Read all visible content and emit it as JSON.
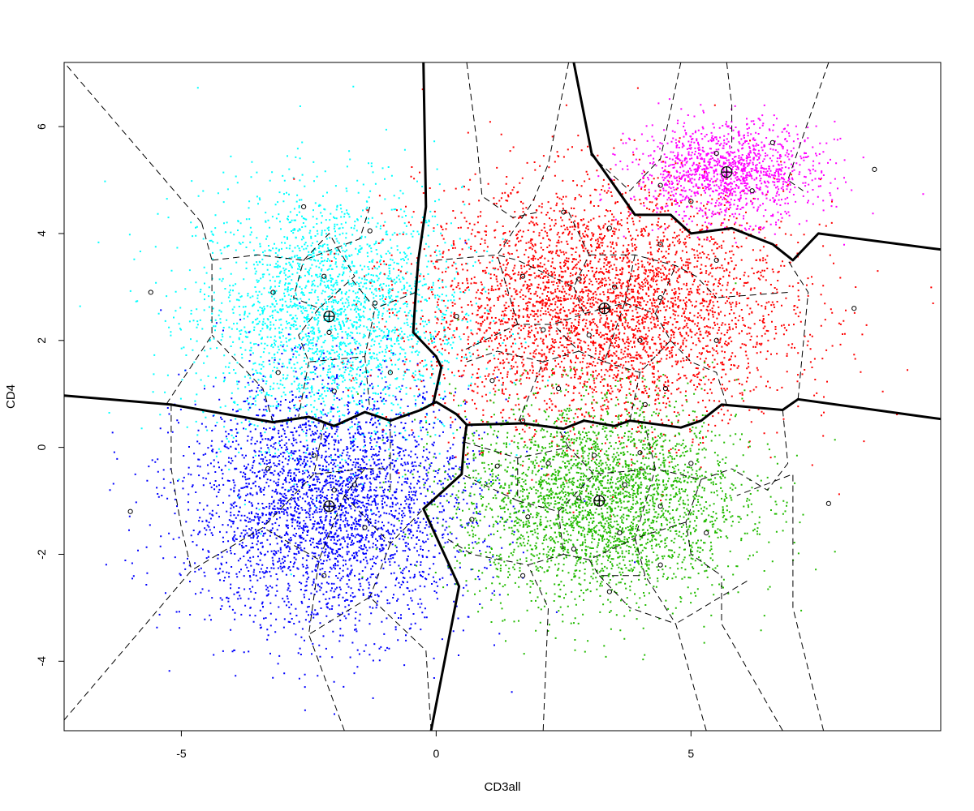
{
  "chart_data": {
    "type": "scatter",
    "xlabel": "CD3all",
    "ylabel": "CD4",
    "xlim": [
      -7.3,
      9.9
    ],
    "ylim": [
      -5.3,
      7.2
    ],
    "x_ticks": [
      {
        "value": -5,
        "label": "-5"
      },
      {
        "value": 0,
        "label": "0"
      },
      {
        "value": 5,
        "label": "5"
      }
    ],
    "y_ticks": [
      {
        "value": -4,
        "label": "-4"
      },
      {
        "value": -2,
        "label": "-2"
      },
      {
        "value": 0,
        "label": "0"
      },
      {
        "value": 2,
        "label": "2"
      },
      {
        "value": 4,
        "label": "4"
      },
      {
        "value": 6,
        "label": "6"
      }
    ],
    "grid": false,
    "clusters": [
      {
        "color": "#00ffff",
        "center": [
          -2.1,
          2.45
        ],
        "sd": [
          1.3,
          1.2
        ],
        "n": 2600,
        "subcenters": [
          [
            -3.2,
            2.9
          ],
          [
            -2.2,
            3.2
          ],
          [
            -1.3,
            4.05
          ],
          [
            -2.6,
            4.5
          ],
          [
            -1.2,
            2.7
          ],
          [
            -2.1,
            2.15
          ],
          [
            -3.1,
            1.4
          ],
          [
            -2.0,
            1.05
          ],
          [
            -0.9,
            1.4
          ],
          [
            -5.6,
            2.9
          ]
        ]
      },
      {
        "color": "#0000ff",
        "center": [
          -2.1,
          -1.1
        ],
        "sd": [
          1.4,
          1.15
        ],
        "n": 3400,
        "subcenters": [
          [
            -3.3,
            -0.4
          ],
          [
            -2.4,
            -0.15
          ],
          [
            -1.6,
            -0.7
          ],
          [
            -1.4,
            -1.5
          ],
          [
            -2.2,
            -2.4
          ],
          [
            -6.0,
            -1.2
          ],
          [
            -2.0,
            -0.8
          ]
        ]
      },
      {
        "color": "#ff0000",
        "center": [
          3.3,
          2.6
        ],
        "sd": [
          1.8,
          1.15
        ],
        "n": 4200,
        "subcenters": [
          [
            0.4,
            2.45
          ],
          [
            1.7,
            3.2
          ],
          [
            2.8,
            3.15
          ],
          [
            3.5,
            3.0
          ],
          [
            3.4,
            4.1
          ],
          [
            4.4,
            3.8
          ],
          [
            4.4,
            2.8
          ],
          [
            4.0,
            2.0
          ],
          [
            3.0,
            2.1
          ],
          [
            2.1,
            2.2
          ],
          [
            1.1,
            1.25
          ],
          [
            2.4,
            1.1
          ],
          [
            5.5,
            3.5
          ],
          [
            5.5,
            2.0
          ],
          [
            4.5,
            1.1
          ],
          [
            2.5,
            4.4
          ],
          [
            1.7,
            0.5
          ],
          [
            8.2,
            2.6
          ],
          [
            4.1,
            0.8
          ]
        ]
      },
      {
        "color": "#22bb00",
        "center": [
          3.2,
          -1.0
        ],
        "sd": [
          1.4,
          0.95
        ],
        "n": 3200,
        "subcenters": [
          [
            1.2,
            -0.35
          ],
          [
            2.2,
            -0.3
          ],
          [
            3.1,
            -0.15
          ],
          [
            4.0,
            -0.1
          ],
          [
            5.0,
            -0.3
          ],
          [
            2.8,
            -0.95
          ],
          [
            3.7,
            -0.7
          ],
          [
            4.4,
            -1.1
          ],
          [
            1.8,
            -1.3
          ],
          [
            0.7,
            -1.35
          ],
          [
            3.6,
            -1.6
          ],
          [
            5.3,
            -1.6
          ],
          [
            2.7,
            -1.9
          ],
          [
            4.4,
            -2.2
          ],
          [
            1.7,
            -2.4
          ],
          [
            3.4,
            -2.7
          ],
          [
            7.7,
            -1.05
          ]
        ]
      },
      {
        "color": "#ff00ff",
        "center": [
          5.7,
          5.15
        ],
        "sd": [
          0.9,
          0.45
        ],
        "n": 1300,
        "subcenters": [
          [
            5.5,
            5.5
          ],
          [
            4.4,
            4.9
          ],
          [
            5.0,
            4.6
          ],
          [
            6.2,
            4.8
          ],
          [
            6.6,
            5.7
          ],
          [
            8.6,
            5.2
          ]
        ]
      }
    ],
    "big_centers": [
      [
        -2.1,
        2.45
      ],
      [
        -2.1,
        -1.1
      ],
      [
        3.3,
        2.6
      ],
      [
        3.2,
        -1.0
      ],
      [
        5.7,
        5.15
      ]
    ],
    "bold_boundaries": [
      [
        [
          -7.3,
          0.97
        ],
        [
          -5.2,
          0.8
        ],
        [
          -3.2,
          0.47
        ],
        [
          -2.5,
          0.57
        ],
        [
          -2.0,
          0.4
        ],
        [
          -1.4,
          0.66
        ],
        [
          -0.9,
          0.5
        ],
        [
          -0.3,
          0.7
        ],
        [
          0.0,
          0.85
        ],
        [
          0.4,
          0.62
        ],
        [
          0.6,
          0.42
        ],
        [
          1.7,
          0.45
        ],
        [
          2.5,
          0.35
        ],
        [
          2.9,
          0.5
        ],
        [
          3.5,
          0.4
        ],
        [
          3.8,
          0.5
        ],
        [
          4.8,
          0.37
        ],
        [
          5.2,
          0.5
        ],
        [
          5.6,
          0.8
        ],
        [
          6.8,
          0.7
        ],
        [
          7.1,
          0.9
        ],
        [
          9.9,
          0.53
        ]
      ],
      [
        [
          0.6,
          0.42
        ],
        [
          0.55,
          0.1
        ],
        [
          0.5,
          -0.5
        ],
        [
          -0.25,
          -1.15
        ],
        [
          0.45,
          -2.6
        ],
        [
          -0.1,
          -5.3
        ]
      ],
      [
        [
          -0.05,
          0.85
        ],
        [
          0.1,
          1.5
        ],
        [
          0.0,
          1.7
        ],
        [
          -0.45,
          2.15
        ],
        [
          -0.4,
          2.9
        ],
        [
          -0.35,
          3.5
        ],
        [
          -0.2,
          4.5
        ],
        [
          -0.25,
          7.2
        ]
      ],
      [
        [
          2.7,
          7.2
        ],
        [
          3.05,
          5.5
        ],
        [
          3.9,
          4.35
        ],
        [
          4.6,
          4.35
        ],
        [
          5.0,
          4.0
        ],
        [
          5.8,
          4.1
        ],
        [
          6.6,
          3.8
        ],
        [
          7.0,
          3.5
        ],
        [
          7.5,
          4.0
        ],
        [
          9.9,
          3.7
        ]
      ]
    ],
    "dashed_boundaries": [
      [
        [
          -5.2,
          0.8
        ],
        [
          -5.2,
          -0.4
        ],
        [
          -5.0,
          -1.5
        ],
        [
          -4.8,
          -2.3
        ],
        [
          -7.3,
          -5.1
        ]
      ],
      [
        [
          -4.6,
          4.2
        ],
        [
          -7.3,
          7.2
        ]
      ],
      [
        [
          -4.6,
          4.2
        ],
        [
          -4.4,
          3.5
        ],
        [
          -4.4,
          2.1
        ],
        [
          -5.3,
          0.8
        ]
      ],
      [
        [
          -1.8,
          -5.3
        ],
        [
          -2.5,
          -3.5
        ],
        [
          -2.3,
          -2.1
        ],
        [
          -3.4,
          -1.5
        ],
        [
          -4.8,
          -2.3
        ]
      ],
      [
        [
          -0.1,
          -5.3
        ],
        [
          -0.2,
          -3.8
        ],
        [
          -1.3,
          -2.8
        ],
        [
          -2.5,
          -3.5
        ]
      ],
      [
        [
          2.1,
          -5.3
        ],
        [
          2.2,
          -3.0
        ],
        [
          1.8,
          -2.2
        ]
      ],
      [
        [
          5.3,
          -5.3
        ],
        [
          4.7,
          -3.3
        ],
        [
          3.8,
          -3.0
        ]
      ],
      [
        [
          6.8,
          -5.3
        ],
        [
          5.6,
          -3.3
        ],
        [
          5.6,
          -2.4
        ]
      ],
      [
        [
          7.6,
          -5.3
        ],
        [
          7.0,
          -3.0
        ],
        [
          7.0,
          -0.5
        ],
        [
          5.9,
          -0.9
        ]
      ],
      [
        [
          6.1,
          -2.5
        ],
        [
          4.7,
          -3.3
        ]
      ],
      [
        [
          6.8,
          0.7
        ],
        [
          6.9,
          -0.3
        ],
        [
          6.5,
          -0.8
        ],
        [
          5.8,
          -0.4
        ]
      ],
      [
        [
          7.1,
          0.9
        ],
        [
          7.3,
          2.9
        ],
        [
          6.9,
          3.5
        ]
      ],
      [
        [
          6.9,
          2.9
        ],
        [
          5.5,
          2.8
        ]
      ],
      [
        [
          4.8,
          7.2
        ],
        [
          4.4,
          5.4
        ],
        [
          3.8,
          4.8
        ],
        [
          3.0,
          5.5
        ]
      ],
      [
        [
          5.7,
          7.2
        ],
        [
          5.8,
          6.4
        ],
        [
          5.8,
          5.6
        ]
      ],
      [
        [
          7.7,
          7.2
        ],
        [
          6.9,
          5.0
        ],
        [
          7.2,
          4.8
        ]
      ],
      [
        [
          2.6,
          7.2
        ],
        [
          2.2,
          5.3
        ],
        [
          1.9,
          4.6
        ],
        [
          1.2,
          3.6
        ],
        [
          0.0,
          3.5
        ]
      ],
      [
        [
          0.6,
          7.2
        ],
        [
          0.8,
          5.7
        ],
        [
          0.9,
          4.7
        ],
        [
          1.5,
          4.3
        ],
        [
          2.0,
          4.4
        ]
      ],
      [
        [
          -3.2,
          0.47
        ],
        [
          -3.4,
          1.1
        ],
        [
          -4.4,
          2.1
        ]
      ],
      [
        [
          -0.4,
          2.9
        ],
        [
          -1.2,
          2.6
        ],
        [
          -1.7,
          3.2
        ]
      ],
      [
        [
          -2.6,
          3.5
        ],
        [
          -2.1,
          4.0
        ],
        [
          -1.6,
          3.2
        ],
        [
          -2.3,
          2.6
        ],
        [
          -2.8,
          2.8
        ],
        [
          -2.6,
          3.5
        ]
      ],
      [
        [
          -1.3,
          4.5
        ],
        [
          -1.5,
          3.9
        ],
        [
          -2.6,
          3.5
        ],
        [
          -3.5,
          3.6
        ],
        [
          -4.4,
          3.5
        ]
      ],
      [
        [
          -2.3,
          2.6
        ],
        [
          -2.7,
          2.1
        ],
        [
          -2.5,
          1.6
        ],
        [
          -1.4,
          1.7
        ],
        [
          -1.2,
          2.6
        ]
      ],
      [
        [
          -2.5,
          1.6
        ],
        [
          -2.7,
          0.57
        ]
      ],
      [
        [
          -1.4,
          1.7
        ],
        [
          -1.3,
          0.7
        ]
      ],
      [
        [
          -0.9,
          0.5
        ],
        [
          -0.9,
          -0.8
        ]
      ],
      [
        [
          -2.2,
          0.45
        ],
        [
          -2.4,
          -0.5
        ],
        [
          -1.4,
          -0.4
        ],
        [
          -1.0,
          -0.4
        ]
      ],
      [
        [
          -2.4,
          -0.5
        ],
        [
          -3.4,
          -1.5
        ]
      ],
      [
        [
          -1.4,
          -0.4
        ],
        [
          -1.8,
          -0.9
        ],
        [
          -2.3,
          -2.1
        ]
      ],
      [
        [
          -1.8,
          -0.9
        ],
        [
          -0.9,
          -1.8
        ],
        [
          -0.25,
          -1.15
        ]
      ],
      [
        [
          -0.9,
          -1.8
        ],
        [
          -1.3,
          -2.8
        ]
      ],
      [
        [
          2.6,
          4.4
        ],
        [
          3.0,
          3.6
        ],
        [
          2.7,
          3.0
        ],
        [
          1.6,
          3.5
        ],
        [
          1.2,
          3.6
        ]
      ],
      [
        [
          3.0,
          3.6
        ],
        [
          3.9,
          3.6
        ],
        [
          4.7,
          3.4
        ],
        [
          5.1,
          3.2
        ],
        [
          5.5,
          2.8
        ]
      ],
      [
        [
          2.7,
          3.0
        ],
        [
          2.9,
          2.5
        ],
        [
          2.3,
          2.3
        ],
        [
          1.6,
          2.3
        ],
        [
          0.5,
          1.8
        ]
      ],
      [
        [
          3.9,
          3.6
        ],
        [
          3.7,
          2.7
        ],
        [
          2.9,
          2.5
        ]
      ],
      [
        [
          3.7,
          2.7
        ],
        [
          4.3,
          2.5
        ],
        [
          4.7,
          3.4
        ]
      ],
      [
        [
          4.3,
          2.5
        ],
        [
          4.6,
          2.0
        ],
        [
          5.0,
          1.6
        ],
        [
          5.5,
          1.4
        ],
        [
          5.7,
          0.8
        ]
      ],
      [
        [
          3.7,
          2.7
        ],
        [
          3.3,
          1.6
        ],
        [
          2.8,
          1.8
        ],
        [
          2.3,
          2.3
        ]
      ],
      [
        [
          3.3,
          1.6
        ],
        [
          4.0,
          1.4
        ],
        [
          4.6,
          2.0
        ]
      ],
      [
        [
          4.0,
          1.4
        ],
        [
          3.8,
          0.5
        ]
      ],
      [
        [
          2.8,
          1.8
        ],
        [
          2.1,
          1.6
        ],
        [
          1.6,
          0.45
        ]
      ],
      [
        [
          2.1,
          1.6
        ],
        [
          1.2,
          1.8
        ],
        [
          0.6,
          1.6
        ]
      ],
      [
        [
          1.6,
          2.3
        ],
        [
          1.2,
          3.6
        ]
      ],
      [
        [
          0.55,
          0.1
        ],
        [
          1.6,
          -0.2
        ],
        [
          2.6,
          0.0
        ],
        [
          3.1,
          -0.5
        ],
        [
          4.3,
          -0.4
        ],
        [
          5.2,
          -0.6
        ],
        [
          5.8,
          -0.4
        ]
      ],
      [
        [
          1.6,
          -0.2
        ],
        [
          1.6,
          -1.0
        ],
        [
          0.5,
          -0.5
        ]
      ],
      [
        [
          1.6,
          -1.0
        ],
        [
          2.4,
          -1.2
        ],
        [
          3.1,
          -0.5
        ]
      ],
      [
        [
          2.4,
          -1.2
        ],
        [
          2.5,
          -2.0
        ],
        [
          3.0,
          -2.1
        ],
        [
          3.9,
          -1.7
        ],
        [
          4.3,
          -0.4
        ]
      ],
      [
        [
          3.9,
          -1.7
        ],
        [
          4.1,
          -2.4
        ],
        [
          4.7,
          -3.3
        ]
      ],
      [
        [
          3.0,
          -2.1
        ],
        [
          3.2,
          -2.4
        ],
        [
          4.1,
          -2.4
        ]
      ],
      [
        [
          2.5,
          -2.0
        ],
        [
          1.8,
          -2.2
        ],
        [
          0.7,
          -2.0
        ],
        [
          0.2,
          -1.7
        ]
      ],
      [
        [
          3.2,
          -2.4
        ],
        [
          3.8,
          -3.0
        ]
      ],
      [
        [
          5.2,
          -0.6
        ],
        [
          4.9,
          -1.4
        ],
        [
          5.0,
          -2.0
        ],
        [
          5.6,
          -2.4
        ]
      ],
      [
        [
          4.9,
          -1.4
        ],
        [
          3.9,
          -1.7
        ]
      ],
      [
        [
          2.6,
          0.0
        ],
        [
          2.4,
          0.35
        ]
      ],
      [
        [
          4.3,
          -0.4
        ],
        [
          4.1,
          0.4
        ]
      ]
    ]
  }
}
